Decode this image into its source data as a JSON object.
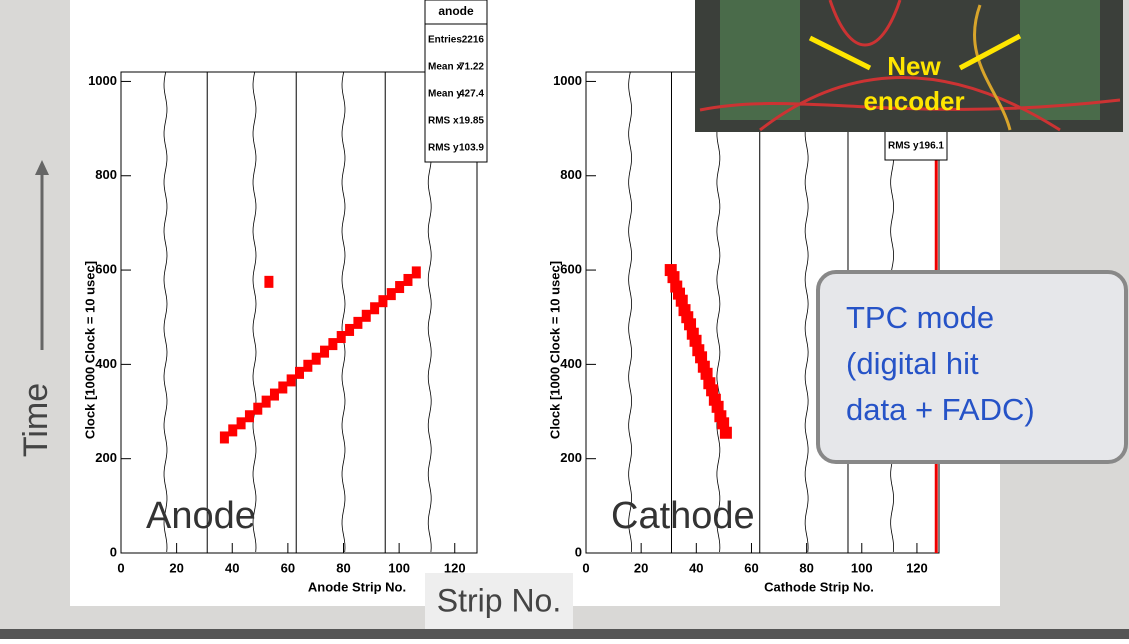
{
  "slide": {
    "time_label": "Time",
    "strip_label": "Strip No.",
    "callout": [
      "TPC mode",
      "(digital hit",
      "data + FADC)"
    ],
    "photo_label": [
      "New",
      "encoder"
    ]
  },
  "chart_data": [
    {
      "type": "scatter",
      "panel_label": "Anode",
      "xlabel": "Anode Strip No.",
      "ylabel": "Clock [1000 Clock = 10 usec]",
      "color": "#ff0000",
      "xlim": [
        0,
        128
      ],
      "ylim": [
        0,
        1020
      ],
      "xticks": [
        0,
        20,
        40,
        60,
        80,
        100,
        120
      ],
      "yticks": [
        0,
        200,
        400,
        600,
        800,
        1000
      ],
      "x": [
        37,
        40,
        43,
        46,
        49,
        52,
        53,
        55,
        58,
        61,
        64,
        67,
        70,
        73,
        76,
        79,
        82,
        85,
        88,
        91,
        94,
        97,
        100,
        103,
        106
      ],
      "y": [
        245,
        260,
        275,
        290,
        306,
        321,
        575,
        336,
        351,
        366,
        382,
        397,
        412,
        427,
        443,
        458,
        473,
        488,
        503,
        519,
        534,
        549,
        564,
        579,
        595
      ],
      "stats": {
        "title": "anode",
        "rows": [
          [
            "Entries",
            "2216"
          ],
          [
            "Mean x",
            "71.22"
          ],
          [
            "Mean y",
            "427.4"
          ],
          [
            "RMS x",
            "19.85"
          ],
          [
            "RMS y",
            "103.9"
          ]
        ]
      }
    },
    {
      "type": "scatter",
      "panel_label": "Cathode",
      "xlabel": "Cathode Strip No.",
      "ylabel": "Clock [1000 Clock = 10 usec]",
      "color": "#ff0000",
      "xlim": [
        0,
        128
      ],
      "ylim": [
        0,
        1020
      ],
      "xticks": [
        0,
        20,
        40,
        60,
        80,
        100,
        120
      ],
      "yticks": [
        0,
        200,
        400,
        600,
        800,
        1000
      ],
      "x": [
        30,
        31,
        32,
        33,
        34,
        35,
        36,
        37,
        38,
        39,
        40,
        41,
        42,
        43,
        44,
        45,
        46,
        47,
        48,
        49,
        50
      ],
      "y": [
        600,
        585,
        565,
        550,
        535,
        515,
        500,
        485,
        465,
        450,
        430,
        415,
        395,
        380,
        360,
        345,
        325,
        310,
        290,
        275,
        255
      ],
      "vline_x": 127,
      "stats": {
        "rows": [
          [
            "RMS y",
            "196.1"
          ]
        ]
      }
    }
  ]
}
